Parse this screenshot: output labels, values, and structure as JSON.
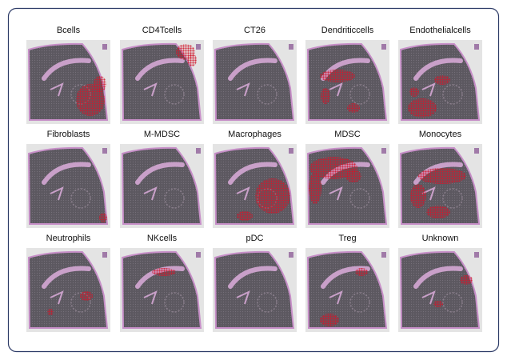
{
  "panels": [
    {
      "title": "Bcells"
    },
    {
      "title": "CD4Tcells"
    },
    {
      "title": "CT26"
    },
    {
      "title": "Dendriticcells"
    },
    {
      "title": "Endothelialcells"
    },
    {
      "title": "Fibroblasts"
    },
    {
      "title": "M-MDSC"
    },
    {
      "title": "Macrophages"
    },
    {
      "title": "MDSC"
    },
    {
      "title": "Monocytes"
    },
    {
      "title": "Neutrophils"
    },
    {
      "title": "NKcells"
    },
    {
      "title": "pDC"
    },
    {
      "title": "Treg"
    },
    {
      "title": "Unknown"
    }
  ]
}
